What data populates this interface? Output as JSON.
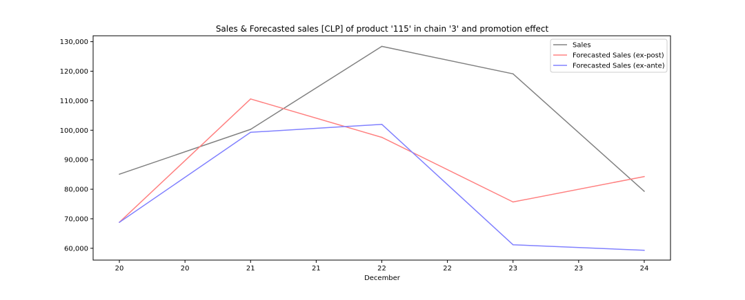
{
  "chart_data": {
    "type": "line",
    "title": "Sales & Forecasted sales [CLP] of product '115' in chain '3' and promotion effect",
    "xlabel": "December",
    "ylabel": "",
    "x": [
      20,
      21,
      22,
      23,
      24
    ],
    "x_tick_labels": [
      "20",
      "20",
      "21",
      "21",
      "22",
      "22",
      "23",
      "23",
      "24"
    ],
    "x_ticks": [
      20,
      20.5,
      21,
      21.5,
      22,
      22.5,
      23,
      23.5,
      24
    ],
    "xlim": [
      19.8,
      24.2
    ],
    "ylim": [
      56000,
      132000
    ],
    "y_ticks": [
      60000,
      70000,
      80000,
      90000,
      100000,
      110000,
      120000,
      130000
    ],
    "y_tick_labels": [
      "60,000",
      "70,000",
      "80,000",
      "90,000",
      "100,000",
      "110,000",
      "120,000",
      "130,000"
    ],
    "grid": false,
    "legend_position": "top-right",
    "series": [
      {
        "name": "Sales",
        "color": "#808080",
        "values": [
          85100,
          100300,
          128400,
          119100,
          79300
        ]
      },
      {
        "name": "Forecasted Sales (ex-post)",
        "color": "#ff8080",
        "values": [
          68800,
          110600,
          97600,
          75700,
          84300
        ]
      },
      {
        "name": "Forecasted Sales (ex-ante)",
        "color": "#8080ff",
        "values": [
          68800,
          99300,
          102000,
          61200,
          59300
        ]
      }
    ]
  }
}
